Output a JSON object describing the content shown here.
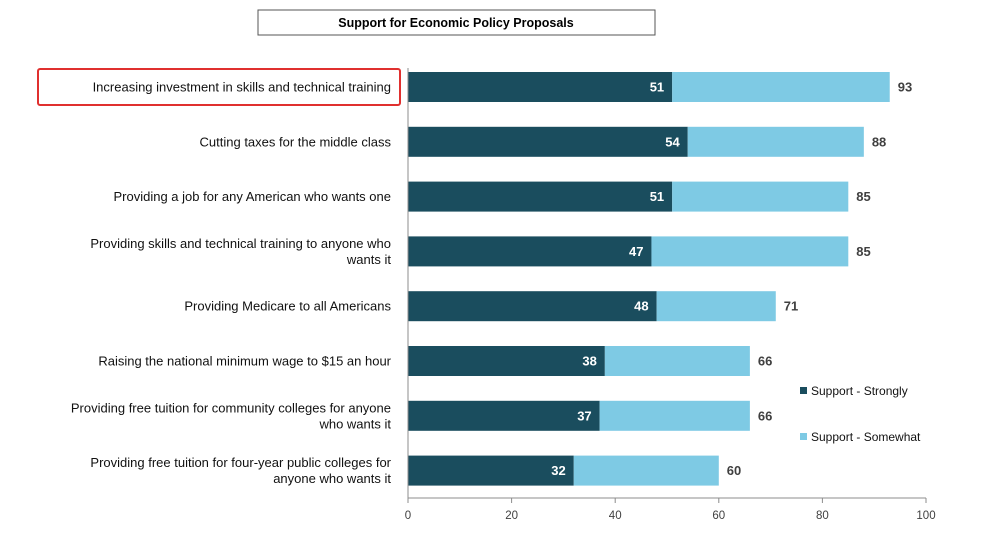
{
  "chart_data": {
    "type": "bar",
    "orientation": "horizontal",
    "stacked": true,
    "title": "Support for Economic Policy Proposals",
    "categories": [
      [
        "Increasing investment in skills and technical training"
      ],
      [
        "Cutting taxes for the middle class"
      ],
      [
        "Providing a job for any American who wants one"
      ],
      [
        "Providing skills and technical training to anyone who",
        "wants it"
      ],
      [
        "Providing Medicare to all Americans"
      ],
      [
        "Raising the national minimum wage to $15 an hour"
      ],
      [
        "Providing free tuition for community colleges for anyone",
        "who wants it"
      ],
      [
        "Providing free tuition for four-year public colleges for",
        "anyone who wants it"
      ]
    ],
    "series": [
      {
        "name": "Support - Strongly",
        "values": [
          51,
          54,
          51,
          47,
          48,
          38,
          37,
          32
        ],
        "color": "#1a4d5e"
      },
      {
        "name": "Support - Somewhat",
        "values": [
          42,
          34,
          34,
          38,
          23,
          28,
          29,
          28
        ],
        "color": "#7ecae4"
      }
    ],
    "data_labels": {
      "strongly": [
        51,
        54,
        51,
        47,
        48,
        38,
        37,
        32
      ],
      "total": [
        93,
        88,
        85,
        85,
        71,
        66,
        66,
        60
      ]
    },
    "x_ticks": [
      "0",
      "20",
      "40",
      "60",
      "80",
      "100"
    ],
    "xlim": [
      0,
      100
    ],
    "xlabel": "",
    "ylabel": "",
    "grid": false,
    "legend_position": "right",
    "highlighted_category_index": 0,
    "highlight_color": "#e0302f"
  }
}
